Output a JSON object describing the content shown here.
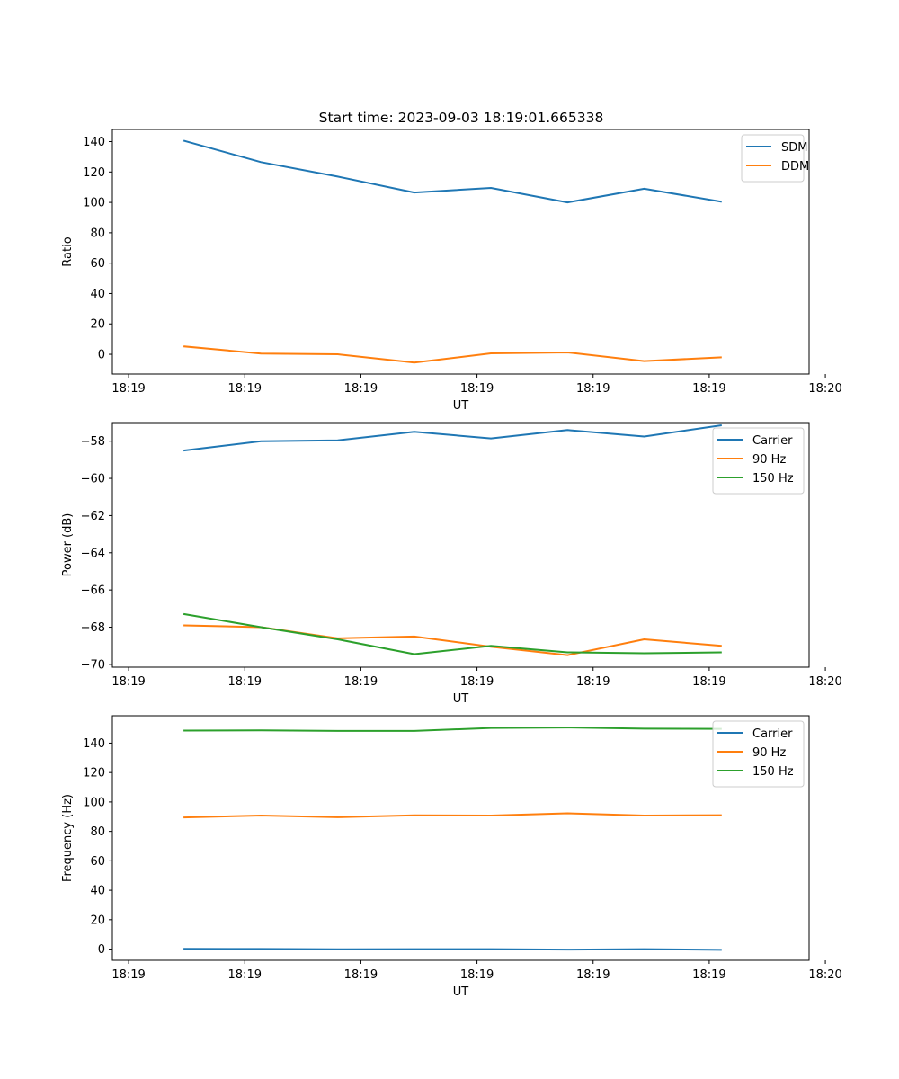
{
  "title": "Start time: 2023-09-03 18:19:01.665338",
  "colors": {
    "c1": "#1f77b4",
    "c2": "#ff7f0e",
    "c3": "#2ca02c"
  },
  "chart_data": [
    {
      "type": "line",
      "xlabel": "UT",
      "ylabel": "Ratio",
      "x_tick_labels": [
        "18:19",
        "18:19",
        "18:19",
        "18:19",
        "18:19",
        "18:19",
        "18:20"
      ],
      "y_ticks": [
        0,
        20,
        40,
        60,
        80,
        100,
        120,
        140
      ],
      "y_tick_labels": [
        "0",
        "20",
        "40",
        "60",
        "80",
        "100",
        "120",
        "140"
      ],
      "ylim": [
        -13.0,
        148.0
      ],
      "x": [
        0.48,
        1.14,
        1.8,
        2.46,
        3.12,
        3.78,
        4.44,
        5.1
      ],
      "xlim": [
        -0.14,
        5.86
      ],
      "legend_loc": "upper right",
      "series": [
        {
          "name": "SDM",
          "color": "#1f77b4",
          "values": [
            140.5,
            126.5,
            117.0,
            106.5,
            109.5,
            100.0,
            109.0,
            100.5
          ]
        },
        {
          "name": "DDM",
          "color": "#ff7f0e",
          "values": [
            5.2,
            0.5,
            0.0,
            -5.5,
            0.6,
            1.2,
            -4.5,
            -2.0
          ]
        }
      ]
    },
    {
      "type": "line",
      "xlabel": "UT",
      "ylabel": "Power (dB)",
      "x_tick_labels": [
        "18:19",
        "18:19",
        "18:19",
        "18:19",
        "18:19",
        "18:19",
        "18:20"
      ],
      "y_ticks": [
        -70,
        -68,
        -66,
        -64,
        -62,
        -60,
        -58
      ],
      "y_tick_labels": [
        "−70",
        "−68",
        "−66",
        "−64",
        "−62",
        "−60",
        "−58"
      ],
      "ylim": [
        -70.15,
        -57.0
      ],
      "x": [
        0.48,
        1.14,
        1.8,
        2.46,
        3.12,
        3.78,
        4.44,
        5.1
      ],
      "xlim": [
        -0.14,
        5.86
      ],
      "legend_loc": "upper right",
      "series": [
        {
          "name": "Carrier",
          "color": "#1f77b4",
          "values": [
            -58.5,
            -58.0,
            -57.95,
            -57.5,
            -57.85,
            -57.4,
            -57.75,
            -57.15
          ]
        },
        {
          "name": "90 Hz",
          "color": "#ff7f0e",
          "values": [
            -67.9,
            -68.0,
            -68.6,
            -68.5,
            -69.05,
            -69.5,
            -68.65,
            -69.0
          ]
        },
        {
          "name": "150 Hz",
          "color": "#2ca02c",
          "values": [
            -67.3,
            -68.0,
            -68.65,
            -69.45,
            -69.0,
            -69.35,
            -69.4,
            -69.35
          ]
        }
      ]
    },
    {
      "type": "line",
      "xlabel": "UT",
      "ylabel": "Frequency (Hz)",
      "x_tick_labels": [
        "18:19",
        "18:19",
        "18:19",
        "18:19",
        "18:19",
        "18:19",
        "18:20"
      ],
      "y_ticks": [
        0,
        20,
        40,
        60,
        80,
        100,
        120,
        140
      ],
      "y_tick_labels": [
        "0",
        "20",
        "40",
        "60",
        "80",
        "100",
        "120",
        "140"
      ],
      "ylim": [
        -7.6,
        158.6
      ],
      "x": [
        0.48,
        1.14,
        1.8,
        2.46,
        3.12,
        3.78,
        4.44,
        5.1
      ],
      "xlim": [
        -0.14,
        5.86
      ],
      "legend_loc": "upper right",
      "series": [
        {
          "name": "Carrier",
          "color": "#1f77b4",
          "values": [
            0.2,
            0.1,
            -0.1,
            0.0,
            0.0,
            -0.3,
            0.0,
            -0.5
          ]
        },
        {
          "name": "90 Hz",
          "color": "#ff7f0e",
          "values": [
            89.5,
            90.8,
            89.6,
            90.9,
            90.8,
            92.3,
            90.8,
            91.0
          ]
        },
        {
          "name": "150 Hz",
          "color": "#2ca02c",
          "values": [
            148.5,
            148.7,
            148.3,
            148.3,
            150.3,
            150.6,
            149.8,
            149.7
          ]
        }
      ]
    }
  ]
}
